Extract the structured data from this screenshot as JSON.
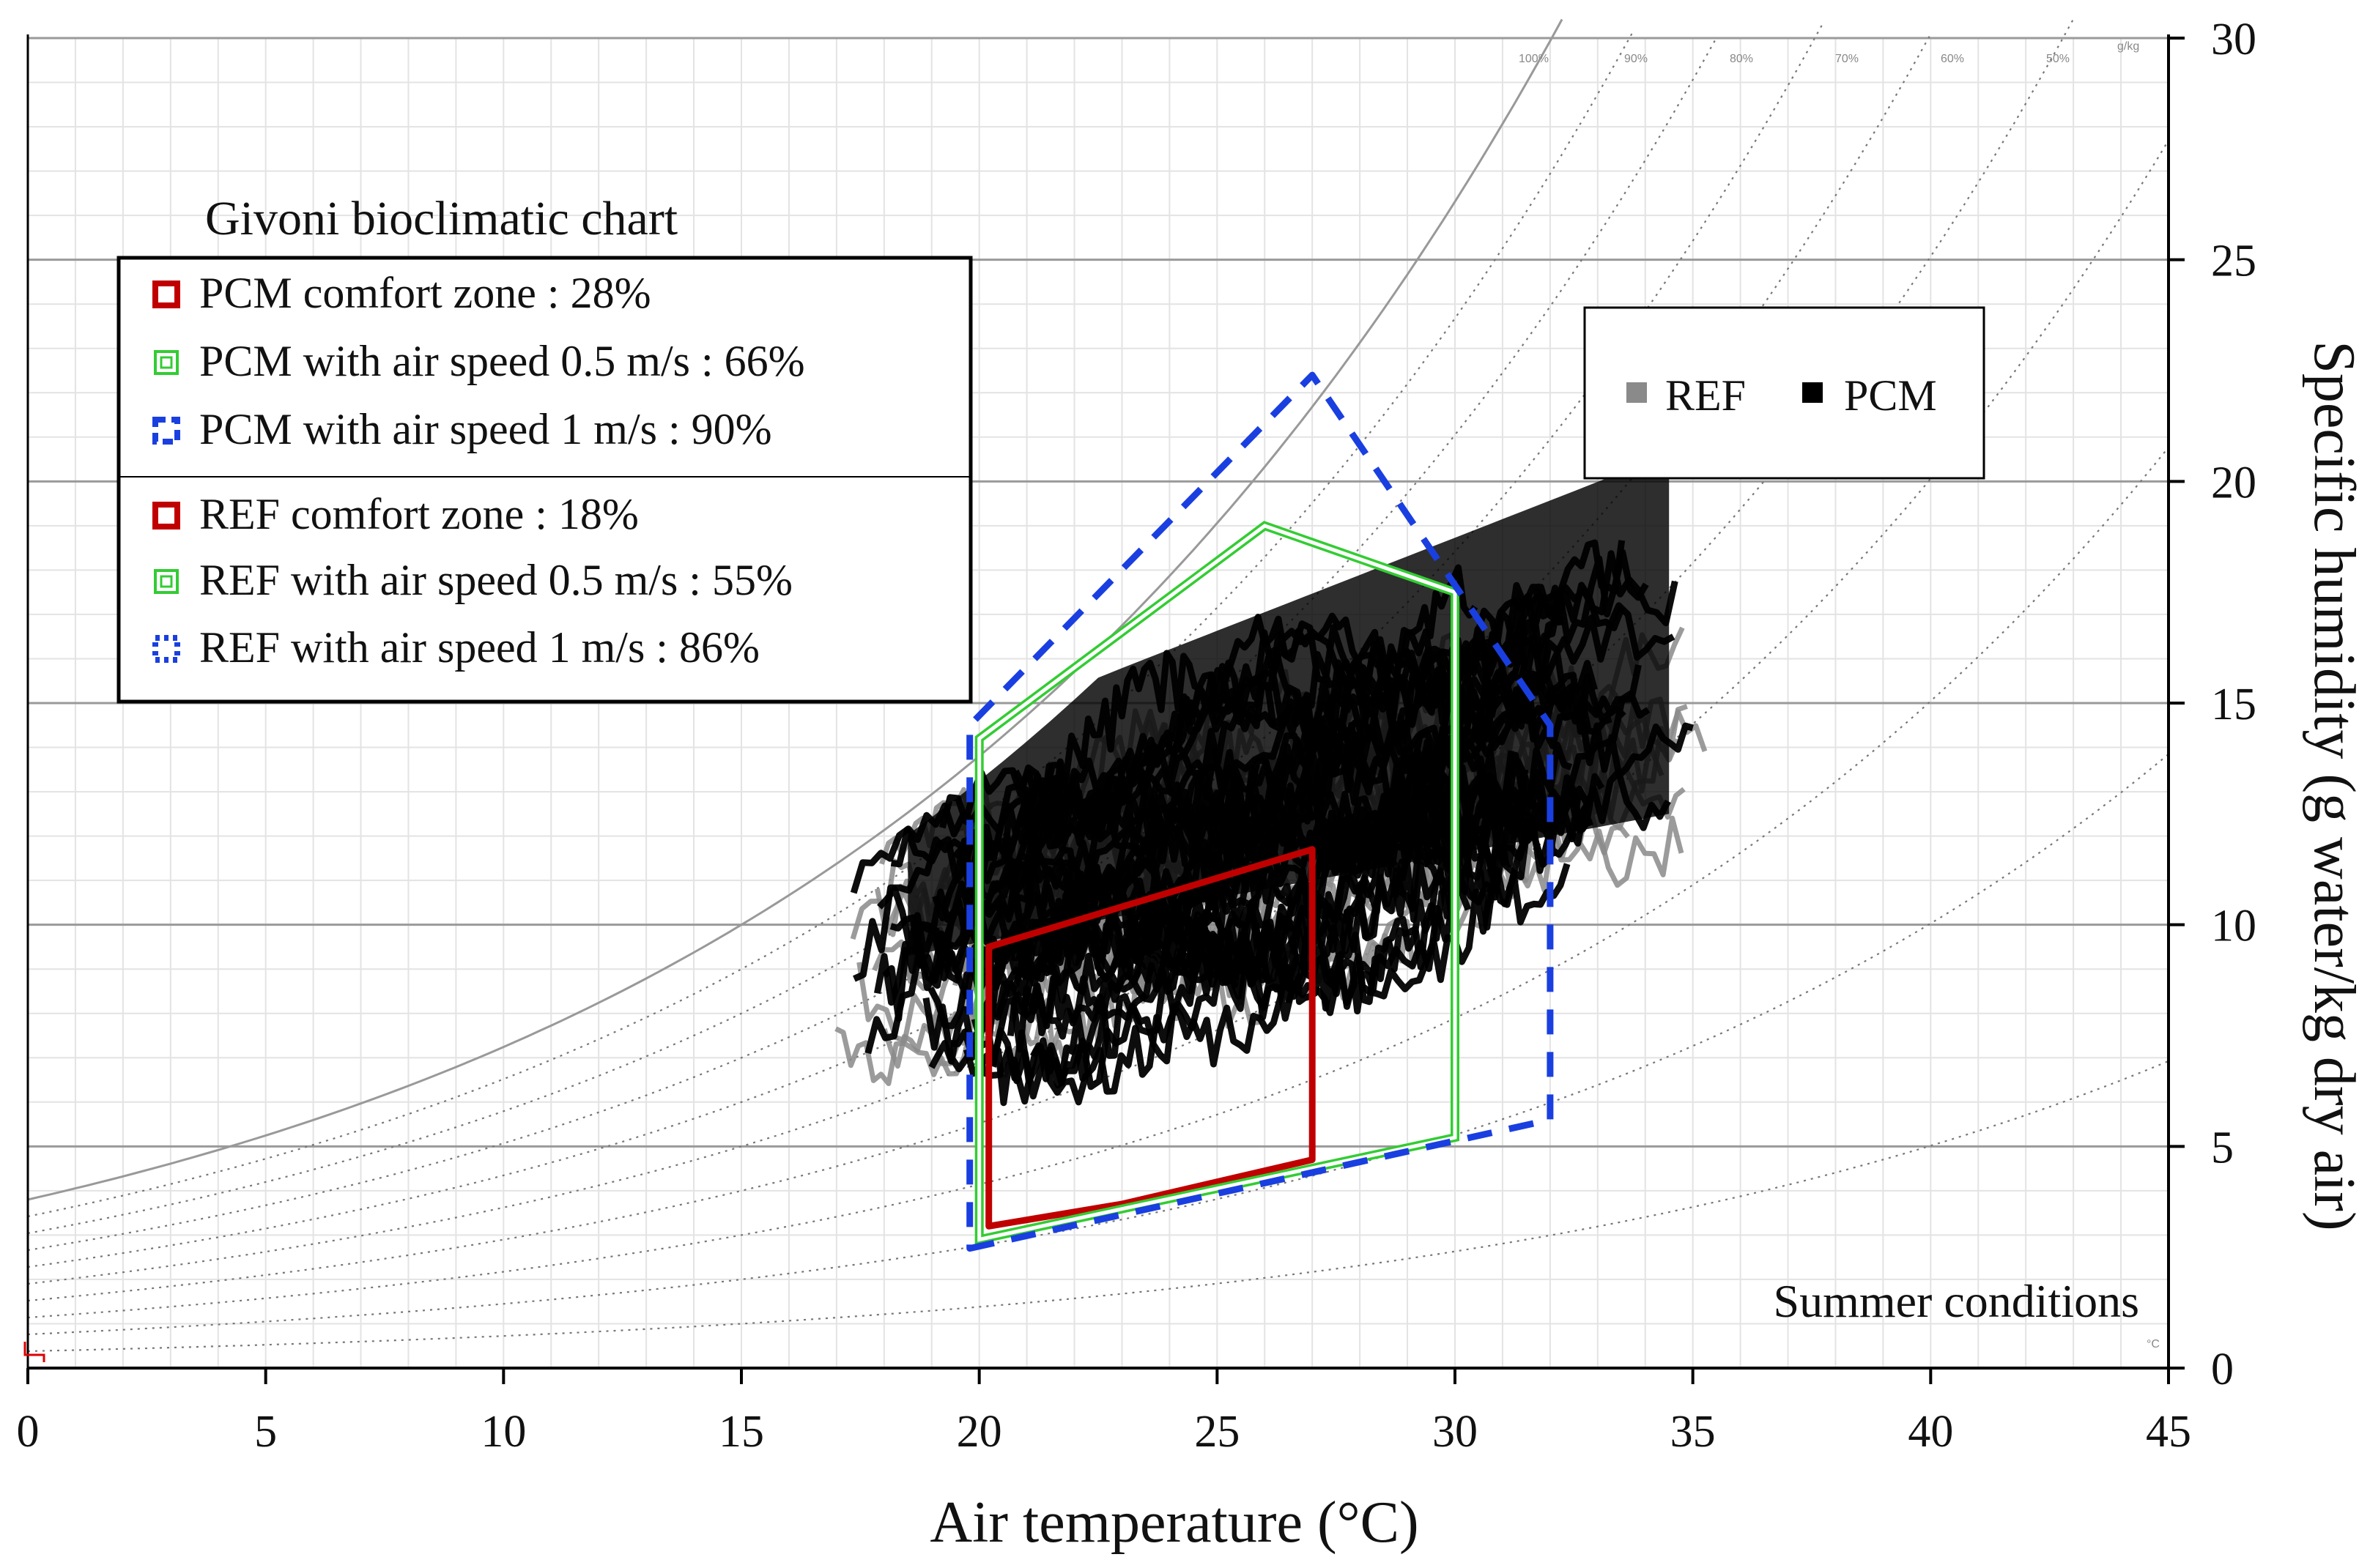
{
  "chart_data": {
    "type": "scatter",
    "title": "Givoni bioclimatic chart",
    "annotation": "Summer conditions",
    "xlabel": "Air temperature (°C)",
    "ylabel": "Specific humidity (g water/kg dry air)",
    "xlim": [
      0,
      45
    ],
    "ylim": [
      0,
      30
    ],
    "x_ticks": [
      0,
      5,
      10,
      15,
      20,
      25,
      30,
      35,
      40,
      45
    ],
    "y_ticks": [
      0,
      5,
      10,
      15,
      20,
      25,
      30
    ],
    "grid": true,
    "inner_axis_unit_y": "g/kg",
    "inner_axis_unit_x": "°C",
    "rh_curve_labels": [
      "100%",
      "90%",
      "80%",
      "70%",
      "60%",
      "50%"
    ],
    "legend_zones": [
      {
        "label": "PCM comfort zone : 28%",
        "color": "#c00000",
        "style": "solid"
      },
      {
        "label": "PCM with air speed 0.5 m/s : 66%",
        "color": "#33cc33",
        "style": "double"
      },
      {
        "label": "PCM with air speed 1 m/s : 90%",
        "color": "#1a3fe0",
        "style": "dashed"
      },
      {
        "label": "REF comfort zone : 18%",
        "color": "#c00000",
        "style": "solid"
      },
      {
        "label": "REF with air speed 0.5 m/s : 55%",
        "color": "#33cc33",
        "style": "double"
      },
      {
        "label": "REF with air speed 1 m/s : 86%",
        "color": "#1a3fe0",
        "style": "dotted"
      }
    ],
    "legend_series": [
      {
        "name": "REF",
        "color": "#8a8a8a"
      },
      {
        "name": "PCM",
        "color": "#000000"
      }
    ],
    "zones": [
      {
        "name": "comfort zone",
        "color": "#c00000",
        "points": [
          [
            20.2,
            3.2
          ],
          [
            23,
            3.7
          ],
          [
            27,
            4.7
          ],
          [
            27,
            11.7
          ],
          [
            20.2,
            9.5
          ]
        ]
      },
      {
        "name": "air speed 0.5 m/s",
        "color": "#33cc33",
        "points": [
          [
            20,
            2.9
          ],
          [
            30,
            5.2
          ],
          [
            30,
            17.5
          ],
          [
            26,
            19.0
          ],
          [
            20,
            14.2
          ]
        ]
      },
      {
        "name": "air speed 1 m/s",
        "color": "#1a3fe0",
        "points": [
          [
            19.8,
            2.7
          ],
          [
            32,
            5.6
          ],
          [
            32,
            14.5
          ],
          [
            27,
            22.4
          ],
          [
            19.8,
            14.5
          ]
        ]
      }
    ],
    "series": [
      {
        "name": "REF",
        "color": "#8a8a8a",
        "trend": {
          "xmin": 16.8,
          "xmax": 35.5,
          "y_at_min": 9.3,
          "y_at_max": 14.8,
          "spread": 3.2,
          "lines": 24
        }
      },
      {
        "name": "PCM",
        "color": "#000000",
        "trend": {
          "xmin": 17.3,
          "xmax": 35.0,
          "y_at_min": 8.7,
          "y_at_max": 15.3,
          "spread": 3.6,
          "lines": 34
        }
      }
    ]
  }
}
